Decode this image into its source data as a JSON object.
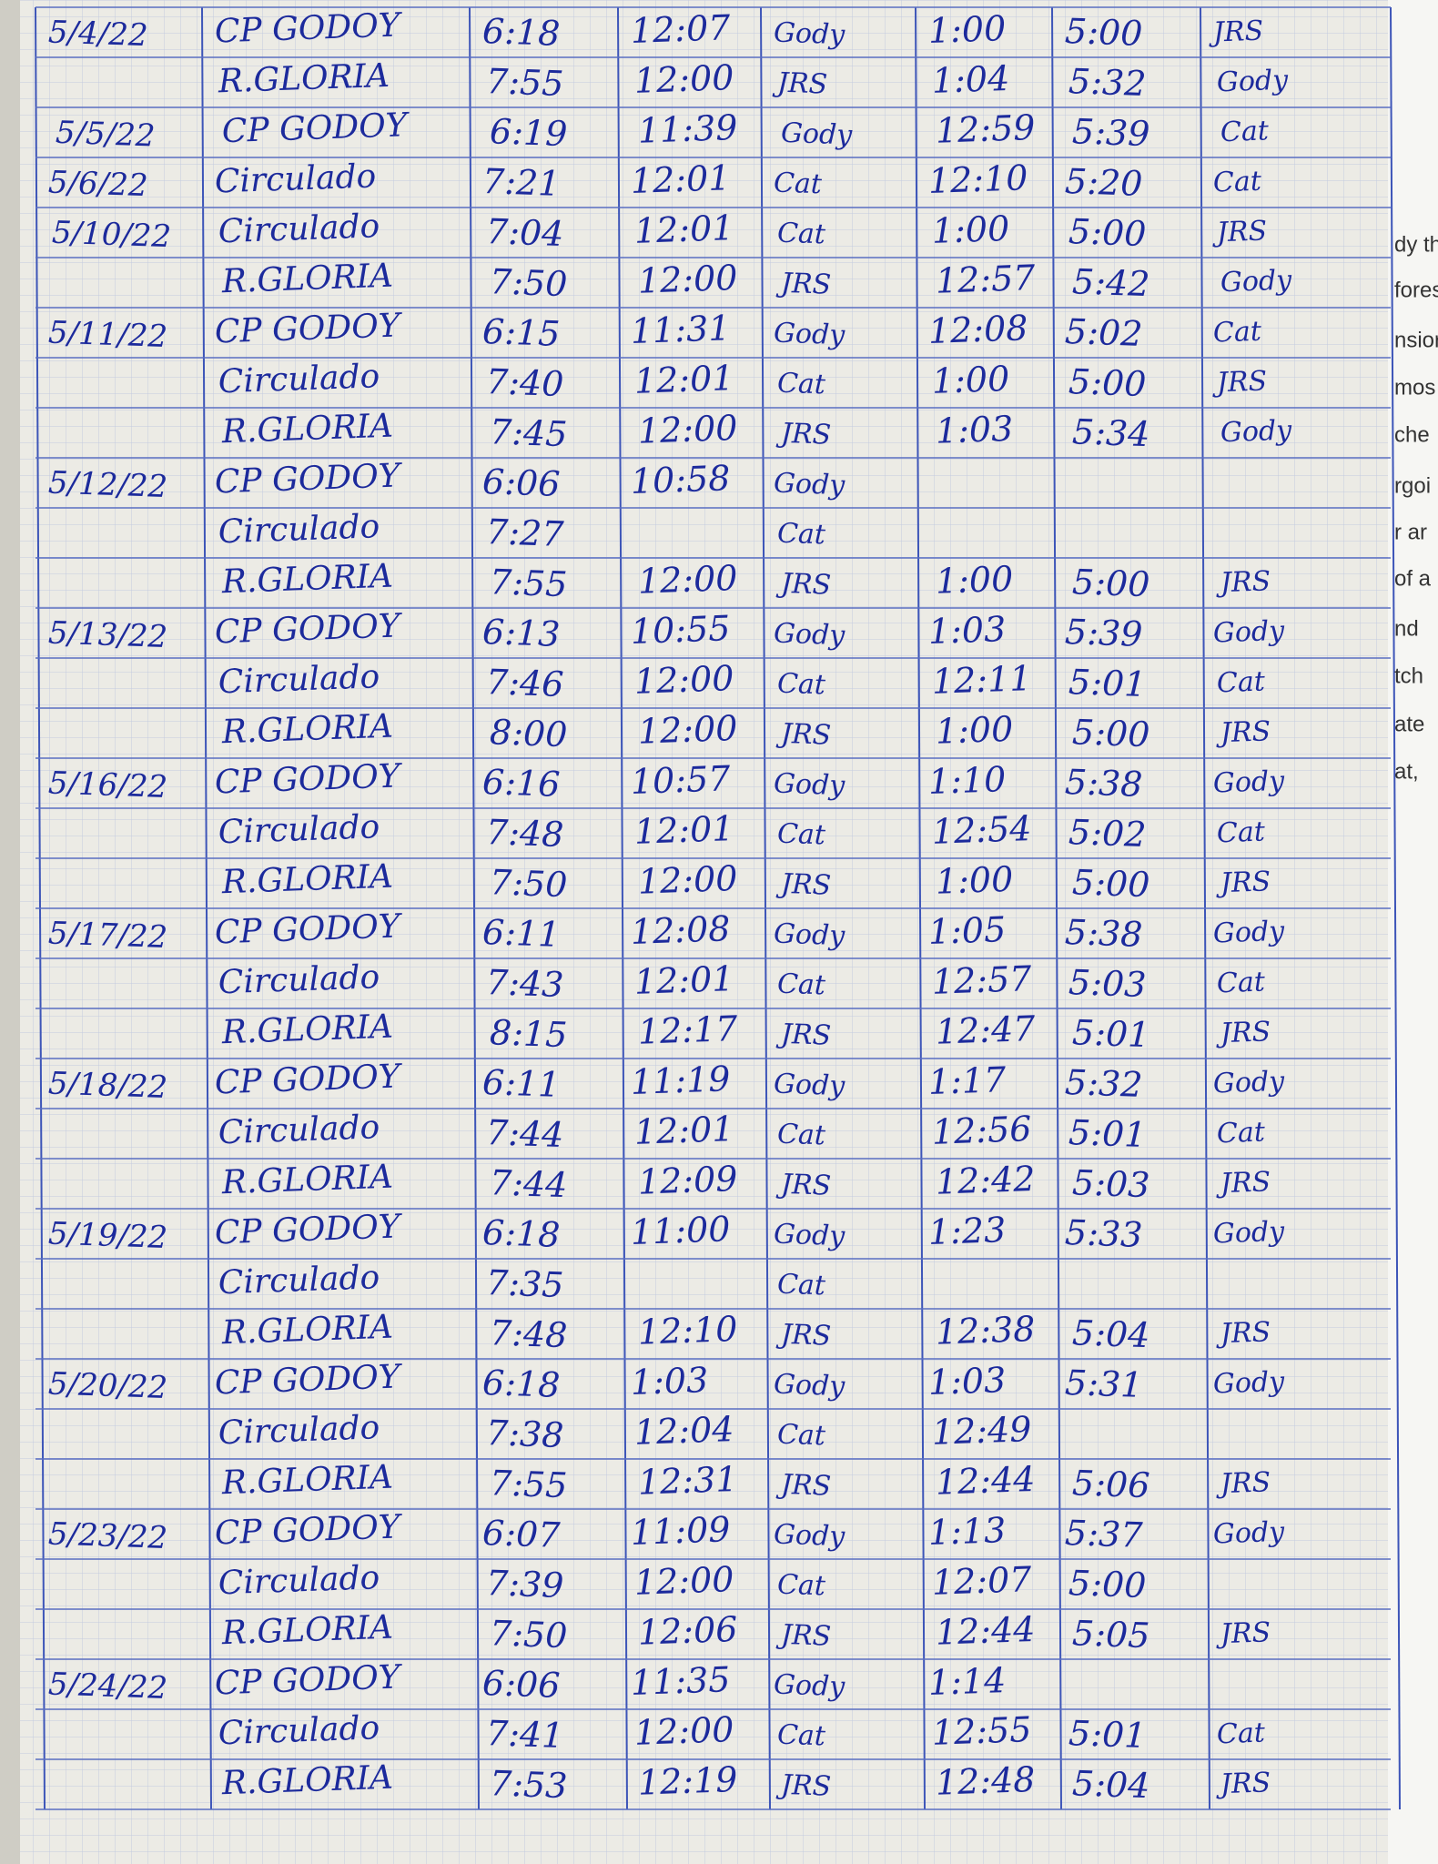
{
  "rows": [
    [
      "5/4/22",
      "CP GODOY",
      "6:18",
      "12:07",
      "Gody",
      "1:00",
      "5:00",
      "JRS"
    ],
    [
      null,
      "R.GLORIA",
      "7:55",
      "12:00",
      "JRS",
      "1:04",
      "5:32",
      "Gody"
    ],
    [
      "5/5/22",
      "CP GODOY",
      "6:19",
      "11:39",
      "Gody",
      "12:59",
      "5:39",
      "Cat"
    ],
    [
      "5/6/22",
      "Circulado",
      "7:21",
      "12:01",
      "Cat",
      "12:10",
      "5:20",
      "Cat"
    ],
    [
      "5/10/22",
      "Circulado",
      "7:04",
      "12:01",
      "Cat",
      "1:00",
      "5:00",
      "JRS"
    ],
    [
      null,
      "R.GLORIA",
      "7:50",
      "12:00",
      "JRS",
      "12:57",
      "5:42",
      "Gody"
    ],
    [
      "5/11/22",
      "CP GODOY",
      "6:15",
      "11:31",
      "Gody",
      "12:08",
      "5:02",
      "Cat"
    ],
    [
      null,
      "Circulado",
      "7:40",
      "12:01",
      "Cat",
      "1:00",
      "5:00",
      "JRS"
    ],
    [
      null,
      "R.GLORIA",
      "7:45",
      "12:00",
      "JRS",
      "1:03",
      "5:34",
      "Gody"
    ],
    [
      "5/12/22",
      "CP GODOY",
      "6:06",
      "10:58",
      "Gody",
      null,
      null,
      null
    ],
    [
      null,
      "Circulado",
      "7:27",
      null,
      "Cat",
      null,
      null,
      null
    ],
    [
      null,
      "R.GLORIA",
      "7:55",
      "12:00",
      "JRS",
      "1:00",
      "5:00",
      "JRS"
    ],
    [
      "5/13/22",
      "CP GODOY",
      "6:13",
      "10:55",
      "Gody",
      "1:03",
      "5:39",
      "Gody"
    ],
    [
      null,
      "Circulado",
      "7:46",
      "12:00",
      "Cat",
      "12:11",
      "5:01",
      "Cat"
    ],
    [
      null,
      "R.GLORIA",
      "8:00",
      "12:00",
      "JRS",
      "1:00",
      "5:00",
      "JRS"
    ],
    [
      "5/16/22",
      "CP GODOY",
      "6:16",
      "10:57",
      "Gody",
      "1:10",
      "5:38",
      "Gody"
    ],
    [
      null,
      "Circulado",
      "7:48",
      "12:01",
      "Cat",
      "12:54",
      "5:02",
      "Cat"
    ],
    [
      null,
      "R.GLORIA",
      "7:50",
      "12:00",
      "JRS",
      "1:00",
      "5:00",
      "JRS"
    ],
    [
      "5/17/22",
      "CP GODOY",
      "6:11",
      "12:08",
      "Gody",
      "1:05",
      "5:38",
      "Gody"
    ],
    [
      null,
      "Circulado",
      "7:43",
      "12:01",
      "Cat",
      "12:57",
      "5:03",
      "Cat"
    ],
    [
      null,
      "R.GLORIA",
      "8:15",
      "12:17",
      "JRS",
      "12:47",
      "5:01",
      "JRS"
    ],
    [
      "5/18/22",
      "CP GODOY",
      "6:11",
      "11:19",
      "Gody",
      "1:17",
      "5:32",
      "Gody"
    ],
    [
      null,
      "Circulado",
      "7:44",
      "12:01",
      "Cat",
      "12:56",
      "5:01",
      "Cat"
    ],
    [
      null,
      "R.GLORIA",
      "7:44",
      "12:09",
      "JRS",
      "12:42",
      "5:03",
      "JRS"
    ],
    [
      "5/19/22",
      "CP GODOY",
      "6:18",
      "11:00",
      "Gody",
      "1:23",
      "5:33",
      "Gody"
    ],
    [
      null,
      "Circulado",
      "7:35",
      null,
      "Cat",
      null,
      null,
      null
    ],
    [
      null,
      "R.GLORIA",
      "7:48",
      "12:10",
      "JRS",
      "12:38",
      "5:04",
      "JRS"
    ],
    [
      "5/20/22",
      "CP GODOY",
      "6:18",
      "1:03",
      "Gody",
      "1:03",
      "5:31",
      "Gody"
    ],
    [
      null,
      "Circulado",
      "7:38",
      "12:04",
      "Cat",
      "12:49",
      null,
      null
    ],
    [
      null,
      "R.GLORIA",
      "7:55",
      "12:31",
      "JRS",
      "12:44",
      "5:06",
      "JRS"
    ],
    [
      "5/23/22",
      "CP GODOY",
      "6:07",
      "11:09",
      "Gody",
      "1:13",
      "5:37",
      "Gody"
    ],
    [
      null,
      "Circulado",
      "7:39",
      "12:00",
      "Cat",
      "12:07",
      "5:00",
      null
    ],
    [
      null,
      "R.GLORIA",
      "7:50",
      "12:06",
      "JRS",
      "12:44",
      "5:05",
      "JRS"
    ],
    [
      "5/24/22",
      "CP GODOY",
      "6:06",
      "11:35",
      "Gody",
      "1:14",
      null,
      null
    ],
    [
      null,
      "Circulado",
      "7:41",
      "12:00",
      "Cat",
      "12:55",
      "5:01",
      "Cat"
    ],
    [
      null,
      "R.GLORIA",
      "7:53",
      "12:19",
      "JRS",
      "12:48",
      "5:04",
      "JRS"
    ]
  ],
  "side_page": {
    "fragments": [
      "dy th",
      "fores",
      "nsior",
      "mos",
      "che",
      "rgoi",
      "r ar",
      "of a",
      "nd",
      "tch",
      "ate",
      "at,"
    ]
  }
}
